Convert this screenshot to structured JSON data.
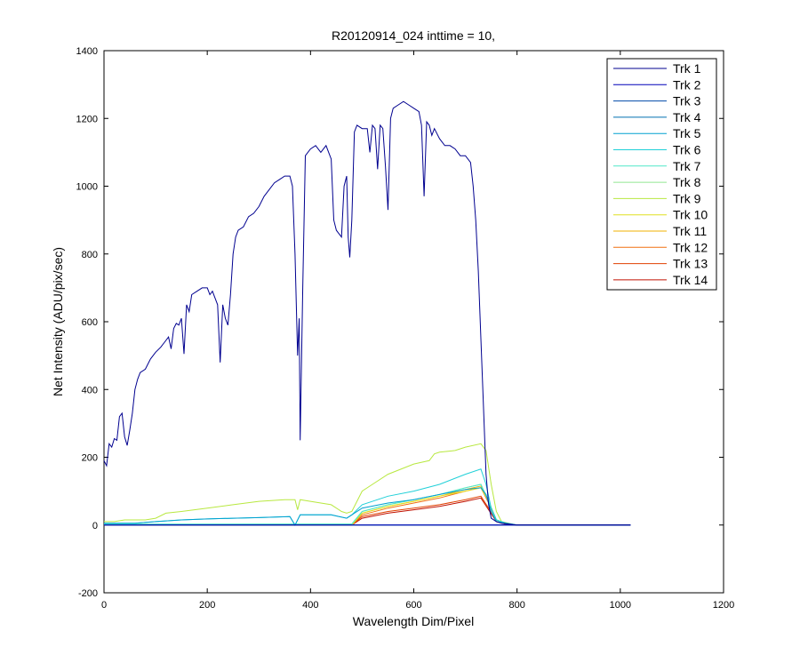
{
  "chart_data": {
    "type": "line",
    "title": "R20120914_024 inttime = 10,",
    "xlabel": "Wavelength Dim/Pixel",
    "ylabel": "Net Intensity (ADU/pix/sec)",
    "xlim": [
      0,
      1200
    ],
    "ylim": [
      -200,
      1400
    ],
    "xticks": [
      0,
      200,
      400,
      600,
      800,
      1000,
      1200
    ],
    "yticks": [
      -200,
      0,
      200,
      400,
      600,
      800,
      1000,
      1200,
      1400
    ],
    "grid": false,
    "legend_position": "top-right",
    "series": [
      {
        "name": "Trk 1",
        "color": "#00008f",
        "points": [
          [
            0,
            190
          ],
          [
            5,
            175
          ],
          [
            10,
            240
          ],
          [
            15,
            230
          ],
          [
            20,
            255
          ],
          [
            25,
            250
          ],
          [
            30,
            320
          ],
          [
            35,
            330
          ],
          [
            40,
            260
          ],
          [
            45,
            235
          ],
          [
            50,
            280
          ],
          [
            55,
            330
          ],
          [
            60,
            400
          ],
          [
            65,
            430
          ],
          [
            70,
            450
          ],
          [
            80,
            460
          ],
          [
            90,
            490
          ],
          [
            100,
            510
          ],
          [
            110,
            525
          ],
          [
            120,
            545
          ],
          [
            125,
            555
          ],
          [
            130,
            520
          ],
          [
            135,
            580
          ],
          [
            140,
            595
          ],
          [
            145,
            590
          ],
          [
            150,
            610
          ],
          [
            155,
            505
          ],
          [
            160,
            650
          ],
          [
            165,
            630
          ],
          [
            170,
            680
          ],
          [
            180,
            690
          ],
          [
            190,
            700
          ],
          [
            200,
            700
          ],
          [
            205,
            680
          ],
          [
            210,
            690
          ],
          [
            215,
            670
          ],
          [
            220,
            650
          ],
          [
            225,
            480
          ],
          [
            230,
            650
          ],
          [
            235,
            610
          ],
          [
            240,
            590
          ],
          [
            245,
            680
          ],
          [
            250,
            800
          ],
          [
            255,
            850
          ],
          [
            260,
            870
          ],
          [
            270,
            880
          ],
          [
            280,
            910
          ],
          [
            290,
            920
          ],
          [
            300,
            940
          ],
          [
            310,
            970
          ],
          [
            320,
            990
          ],
          [
            330,
            1010
          ],
          [
            340,
            1020
          ],
          [
            350,
            1030
          ],
          [
            360,
            1030
          ],
          [
            365,
            1000
          ],
          [
            370,
            800
          ],
          [
            375,
            500
          ],
          [
            378,
            610
          ],
          [
            380,
            250
          ],
          [
            385,
            700
          ],
          [
            390,
            1090
          ],
          [
            400,
            1110
          ],
          [
            410,
            1120
          ],
          [
            420,
            1100
          ],
          [
            430,
            1120
          ],
          [
            440,
            1080
          ],
          [
            445,
            900
          ],
          [
            450,
            870
          ],
          [
            455,
            860
          ],
          [
            460,
            850
          ],
          [
            465,
            1000
          ],
          [
            470,
            1030
          ],
          [
            473,
            850
          ],
          [
            476,
            790
          ],
          [
            480,
            900
          ],
          [
            485,
            1160
          ],
          [
            490,
            1180
          ],
          [
            500,
            1170
          ],
          [
            510,
            1170
          ],
          [
            515,
            1100
          ],
          [
            520,
            1180
          ],
          [
            525,
            1170
          ],
          [
            530,
            1050
          ],
          [
            535,
            1180
          ],
          [
            540,
            1170
          ],
          [
            545,
            1060
          ],
          [
            550,
            930
          ],
          [
            555,
            1200
          ],
          [
            560,
            1230
          ],
          [
            570,
            1240
          ],
          [
            580,
            1250
          ],
          [
            590,
            1240
          ],
          [
            600,
            1230
          ],
          [
            610,
            1220
          ],
          [
            615,
            1180
          ],
          [
            620,
            970
          ],
          [
            625,
            1190
          ],
          [
            630,
            1180
          ],
          [
            635,
            1150
          ],
          [
            640,
            1170
          ],
          [
            650,
            1140
          ],
          [
            660,
            1120
          ],
          [
            670,
            1120
          ],
          [
            680,
            1110
          ],
          [
            690,
            1090
          ],
          [
            700,
            1090
          ],
          [
            710,
            1070
          ],
          [
            715,
            1000
          ],
          [
            720,
            900
          ],
          [
            725,
            750
          ],
          [
            730,
            550
          ],
          [
            735,
            350
          ],
          [
            740,
            150
          ],
          [
            745,
            60
          ],
          [
            750,
            20
          ],
          [
            760,
            10
          ],
          [
            770,
            5
          ],
          [
            800,
            0
          ],
          [
            1020,
            0
          ]
        ]
      },
      {
        "name": "Trk 2",
        "color": "#0000b8",
        "points": [
          [
            0,
            0
          ],
          [
            1020,
            0
          ]
        ]
      },
      {
        "name": "Trk 3",
        "color": "#0048a8",
        "points": [
          [
            0,
            0
          ],
          [
            400,
            0
          ],
          [
            1020,
            0
          ]
        ]
      },
      {
        "name": "Trk 4",
        "color": "#0070b0",
        "points": [
          [
            0,
            0
          ],
          [
            400,
            0
          ],
          [
            1020,
            0
          ]
        ]
      },
      {
        "name": "Trk 5",
        "color": "#00a0d0",
        "points": [
          [
            0,
            5
          ],
          [
            60,
            5
          ],
          [
            100,
            10
          ],
          [
            150,
            15
          ],
          [
            200,
            18
          ],
          [
            250,
            20
          ],
          [
            300,
            22
          ],
          [
            360,
            25
          ],
          [
            370,
            0
          ],
          [
            380,
            30
          ],
          [
            400,
            30
          ],
          [
            440,
            30
          ],
          [
            470,
            20
          ],
          [
            480,
            30
          ],
          [
            500,
            50
          ],
          [
            550,
            65
          ],
          [
            600,
            75
          ],
          [
            650,
            90
          ],
          [
            700,
            105
          ],
          [
            730,
            110
          ],
          [
            740,
            90
          ],
          [
            750,
            40
          ],
          [
            760,
            10
          ],
          [
            780,
            5
          ],
          [
            800,
            0
          ],
          [
            1020,
            0
          ]
        ]
      },
      {
        "name": "Trk 6",
        "color": "#20d0d8",
        "points": [
          [
            0,
            5
          ],
          [
            60,
            5
          ],
          [
            100,
            10
          ],
          [
            150,
            15
          ],
          [
            200,
            18
          ],
          [
            250,
            20
          ],
          [
            300,
            22
          ],
          [
            360,
            25
          ],
          [
            370,
            0
          ],
          [
            380,
            30
          ],
          [
            400,
            30
          ],
          [
            440,
            30
          ],
          [
            470,
            20
          ],
          [
            480,
            30
          ],
          [
            500,
            60
          ],
          [
            550,
            85
          ],
          [
            600,
            100
          ],
          [
            650,
            120
          ],
          [
            700,
            150
          ],
          [
            730,
            165
          ],
          [
            740,
            120
          ],
          [
            750,
            50
          ],
          [
            760,
            15
          ],
          [
            780,
            5
          ],
          [
            800,
            0
          ],
          [
            1020,
            0
          ]
        ]
      },
      {
        "name": "Trk 7",
        "color": "#50e8c8",
        "points": [
          [
            0,
            3
          ],
          [
            200,
            3
          ],
          [
            400,
            3
          ],
          [
            480,
            3
          ],
          [
            500,
            40
          ],
          [
            550,
            60
          ],
          [
            600,
            75
          ],
          [
            650,
            90
          ],
          [
            700,
            110
          ],
          [
            730,
            120
          ],
          [
            745,
            70
          ],
          [
            760,
            15
          ],
          [
            780,
            3
          ],
          [
            800,
            0
          ],
          [
            1020,
            0
          ]
        ]
      },
      {
        "name": "Trk 8",
        "color": "#90e890",
        "points": [
          [
            0,
            2
          ],
          [
            200,
            2
          ],
          [
            400,
            3
          ],
          [
            480,
            3
          ],
          [
            500,
            40
          ],
          [
            550,
            60
          ],
          [
            600,
            75
          ],
          [
            650,
            90
          ],
          [
            700,
            110
          ],
          [
            730,
            120
          ],
          [
            745,
            70
          ],
          [
            760,
            15
          ],
          [
            780,
            3
          ],
          [
            800,
            0
          ],
          [
            1020,
            0
          ]
        ]
      },
      {
        "name": "Trk 9",
        "color": "#b8e840",
        "points": [
          [
            0,
            10
          ],
          [
            20,
            10
          ],
          [
            40,
            15
          ],
          [
            80,
            15
          ],
          [
            100,
            20
          ],
          [
            120,
            35
          ],
          [
            150,
            40
          ],
          [
            200,
            50
          ],
          [
            250,
            60
          ],
          [
            300,
            70
          ],
          [
            350,
            75
          ],
          [
            370,
            75
          ],
          [
            375,
            45
          ],
          [
            380,
            75
          ],
          [
            400,
            70
          ],
          [
            440,
            60
          ],
          [
            460,
            40
          ],
          [
            470,
            35
          ],
          [
            480,
            40
          ],
          [
            500,
            100
          ],
          [
            520,
            120
          ],
          [
            550,
            150
          ],
          [
            600,
            180
          ],
          [
            630,
            190
          ],
          [
            640,
            210
          ],
          [
            650,
            215
          ],
          [
            680,
            220
          ],
          [
            700,
            230
          ],
          [
            730,
            240
          ],
          [
            740,
            220
          ],
          [
            750,
            120
          ],
          [
            760,
            40
          ],
          [
            770,
            10
          ],
          [
            790,
            3
          ],
          [
            800,
            0
          ],
          [
            1020,
            0
          ]
        ]
      },
      {
        "name": "Trk 10",
        "color": "#e0e020",
        "points": [
          [
            0,
            0
          ],
          [
            480,
            0
          ],
          [
            500,
            35
          ],
          [
            550,
            55
          ],
          [
            600,
            70
          ],
          [
            650,
            85
          ],
          [
            700,
            100
          ],
          [
            730,
            110
          ],
          [
            745,
            70
          ],
          [
            760,
            15
          ],
          [
            780,
            3
          ],
          [
            800,
            0
          ],
          [
            1020,
            0
          ]
        ]
      },
      {
        "name": "Trk 11",
        "color": "#f0b000",
        "points": [
          [
            0,
            0
          ],
          [
            480,
            0
          ],
          [
            500,
            35
          ],
          [
            550,
            55
          ],
          [
            600,
            70
          ],
          [
            650,
            85
          ],
          [
            700,
            105
          ],
          [
            730,
            115
          ],
          [
            745,
            70
          ],
          [
            760,
            15
          ],
          [
            780,
            3
          ],
          [
            800,
            0
          ],
          [
            1020,
            0
          ]
        ]
      },
      {
        "name": "Trk 12",
        "color": "#f07010",
        "points": [
          [
            0,
            0
          ],
          [
            480,
            0
          ],
          [
            500,
            30
          ],
          [
            550,
            50
          ],
          [
            600,
            65
          ],
          [
            650,
            80
          ],
          [
            700,
            100
          ],
          [
            730,
            110
          ],
          [
            745,
            65
          ],
          [
            760,
            15
          ],
          [
            780,
            3
          ],
          [
            800,
            0
          ],
          [
            1020,
            0
          ]
        ]
      },
      {
        "name": "Trk 13",
        "color": "#e04000",
        "points": [
          [
            0,
            0
          ],
          [
            480,
            0
          ],
          [
            500,
            25
          ],
          [
            550,
            40
          ],
          [
            600,
            50
          ],
          [
            650,
            60
          ],
          [
            700,
            75
          ],
          [
            730,
            85
          ],
          [
            745,
            50
          ],
          [
            760,
            10
          ],
          [
            780,
            2
          ],
          [
            800,
            0
          ],
          [
            1020,
            0
          ]
        ]
      },
      {
        "name": "Trk 14",
        "color": "#c01000",
        "points": [
          [
            0,
            0
          ],
          [
            480,
            0
          ],
          [
            500,
            20
          ],
          [
            550,
            35
          ],
          [
            600,
            45
          ],
          [
            650,
            55
          ],
          [
            700,
            70
          ],
          [
            730,
            80
          ],
          [
            745,
            45
          ],
          [
            760,
            10
          ],
          [
            780,
            2
          ],
          [
            800,
            0
          ],
          [
            1020,
            0
          ]
        ]
      }
    ]
  }
}
